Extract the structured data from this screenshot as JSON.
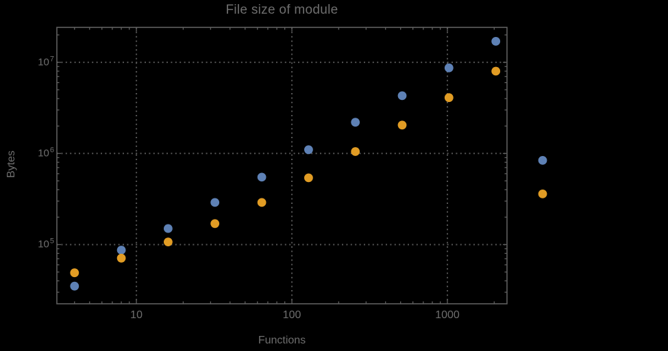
{
  "chart_data": {
    "type": "scatter",
    "title": "File size of module",
    "xlabel": "Functions",
    "ylabel": "Bytes",
    "x_scale": "log",
    "y_scale": "log",
    "xlim": [
      3.08,
      2417
    ],
    "ylim": [
      22400,
      24200000
    ],
    "grid": "dotted-at-major-ticks",
    "legend": "none",
    "frame": true,
    "note": "points at x=4096 are rendered outside the right frame edge (unclipped)",
    "x_ticks": [
      {
        "label": "10",
        "value": 10
      },
      {
        "label": "100",
        "value": 100
      },
      {
        "label": "1000",
        "value": 1000
      }
    ],
    "y_ticks": [
      {
        "base": "10",
        "exponent": "5",
        "value": 100000
      },
      {
        "base": "10",
        "exponent": "6",
        "value": 1000000
      },
      {
        "base": "10",
        "exponent": "7",
        "value": 10000000
      }
    ],
    "x": [
      4,
      8,
      16,
      32,
      64,
      128,
      256,
      512,
      1024,
      2048,
      4096
    ],
    "series": [
      {
        "name": "series-1-blue",
        "color": "#5E81B5",
        "values": [
          35000,
          87000,
          150000,
          290000,
          550000,
          1100000,
          2200000,
          4300000,
          8700000,
          17000000,
          840000
        ]
      },
      {
        "name": "series-2-orange",
        "color": "#E19C24",
        "values": [
          49000,
          71000,
          107000,
          170000,
          290000,
          540000,
          1050000,
          2050000,
          4100000,
          8000000,
          360000
        ]
      }
    ],
    "colors": {
      "background": "#000000",
      "text": "#6e6e6e",
      "frame": "#606060",
      "grid": "#565656",
      "tick": "#606060"
    }
  }
}
